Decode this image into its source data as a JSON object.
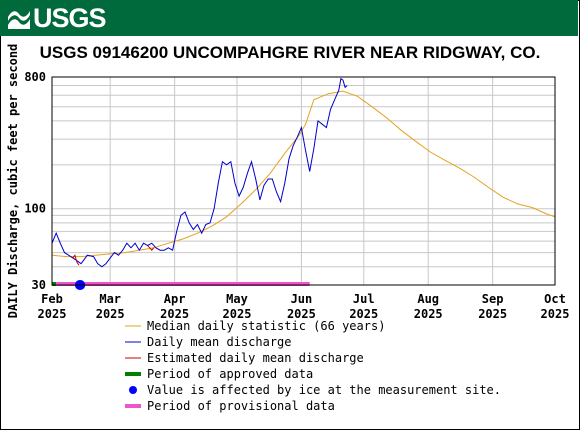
{
  "header": {
    "logo_text": "USGS",
    "logo_icon": "usgs-wave-icon",
    "banner_color": "#006a3c"
  },
  "chart_data": {
    "type": "line",
    "title": "USGS 09146200 UNCOMPAHGRE RIVER NEAR RIDGWAY, CO.",
    "ylabel": "DAILY Discharge, cubic feet per second",
    "xlabel": "",
    "yscale": "log",
    "ylim": [
      30,
      800
    ],
    "yticks": [
      30,
      100,
      800
    ],
    "xlim": [
      "2025-02-01",
      "2025-10-01"
    ],
    "xticks": [
      {
        "date": "2025-02-01",
        "month": "Feb",
        "year": "2025"
      },
      {
        "date": "2025-03-01",
        "month": "Mar",
        "year": "2025"
      },
      {
        "date": "2025-04-01",
        "month": "Apr",
        "year": "2025"
      },
      {
        "date": "2025-05-01",
        "month": "May",
        "year": "2025"
      },
      {
        "date": "2025-06-01",
        "month": "Jun",
        "year": "2025"
      },
      {
        "date": "2025-07-01",
        "month": "Jul",
        "year": "2025"
      },
      {
        "date": "2025-08-01",
        "month": "Aug",
        "year": "2025"
      },
      {
        "date": "2025-09-01",
        "month": "Sep",
        "year": "2025"
      },
      {
        "date": "2025-10-01",
        "month": "Oct",
        "year": "2025"
      }
    ],
    "grid": true,
    "legend_position": "bottom",
    "colors": {
      "median": "#e6a21f",
      "daily": "#0000cc",
      "estimated": "#cc0000",
      "approved": "#008000",
      "ice": "#0000ff",
      "provisional": "#ee55cc"
    },
    "series": [
      {
        "name": "Median daily statistic (66 years)",
        "key": "median",
        "points": [
          [
            "2025-02-01",
            48
          ],
          [
            "2025-02-08",
            47
          ],
          [
            "2025-02-15",
            47
          ],
          [
            "2025-02-22",
            48
          ],
          [
            "2025-03-01",
            49
          ],
          [
            "2025-03-08",
            50
          ],
          [
            "2025-03-15",
            52
          ],
          [
            "2025-03-22",
            54
          ],
          [
            "2025-03-29",
            58
          ],
          [
            "2025-04-05",
            62
          ],
          [
            "2025-04-12",
            68
          ],
          [
            "2025-04-19",
            76
          ],
          [
            "2025-04-26",
            88
          ],
          [
            "2025-05-03",
            108
          ],
          [
            "2025-05-10",
            135
          ],
          [
            "2025-05-17",
            175
          ],
          [
            "2025-05-24",
            240
          ],
          [
            "2025-05-31",
            320
          ],
          [
            "2025-06-03",
            380
          ],
          [
            "2025-06-07",
            560
          ],
          [
            "2025-06-14",
            615
          ],
          [
            "2025-06-21",
            640
          ],
          [
            "2025-06-28",
            590
          ],
          [
            "2025-07-05",
            500
          ],
          [
            "2025-07-12",
            420
          ],
          [
            "2025-07-19",
            345
          ],
          [
            "2025-07-26",
            290
          ],
          [
            "2025-08-02",
            245
          ],
          [
            "2025-08-09",
            215
          ],
          [
            "2025-08-16",
            190
          ],
          [
            "2025-08-23",
            165
          ],
          [
            "2025-08-30",
            140
          ],
          [
            "2025-09-06",
            120
          ],
          [
            "2025-09-13",
            108
          ],
          [
            "2025-09-20",
            102
          ],
          [
            "2025-09-27",
            92
          ],
          [
            "2025-10-01",
            88
          ]
        ]
      },
      {
        "name": "Daily mean discharge",
        "key": "daily",
        "points": [
          [
            "2025-02-01",
            58
          ],
          [
            "2025-02-03",
            68
          ],
          [
            "2025-02-05",
            58
          ],
          [
            "2025-02-07",
            50
          ],
          [
            "2025-02-09",
            48
          ],
          [
            "2025-02-11",
            46
          ],
          [
            "2025-02-13",
            44
          ],
          [
            "2025-02-15",
            42
          ],
          [
            "2025-02-18",
            48
          ],
          [
            "2025-02-21",
            47
          ],
          [
            "2025-02-23",
            42
          ],
          [
            "2025-02-25",
            40
          ],
          [
            "2025-02-27",
            42
          ],
          [
            "2025-03-01",
            46
          ],
          [
            "2025-03-03",
            50
          ],
          [
            "2025-03-05",
            48
          ],
          [
            "2025-03-07",
            52
          ],
          [
            "2025-03-09",
            58
          ],
          [
            "2025-03-11",
            54
          ],
          [
            "2025-03-13",
            58
          ],
          [
            "2025-03-15",
            52
          ],
          [
            "2025-03-17",
            58
          ],
          [
            "2025-03-19",
            56
          ],
          [
            "2025-03-21",
            58
          ],
          [
            "2025-03-23",
            54
          ],
          [
            "2025-03-25",
            52
          ],
          [
            "2025-03-27",
            52
          ],
          [
            "2025-03-29",
            54
          ],
          [
            "2025-03-31",
            52
          ],
          [
            "2025-04-02",
            70
          ],
          [
            "2025-04-04",
            90
          ],
          [
            "2025-04-06",
            95
          ],
          [
            "2025-04-08",
            80
          ],
          [
            "2025-04-10",
            72
          ],
          [
            "2025-04-12",
            78
          ],
          [
            "2025-04-14",
            68
          ],
          [
            "2025-04-16",
            78
          ],
          [
            "2025-04-18",
            80
          ],
          [
            "2025-04-20",
            100
          ],
          [
            "2025-04-22",
            150
          ],
          [
            "2025-04-24",
            210
          ],
          [
            "2025-04-26",
            200
          ],
          [
            "2025-04-28",
            210
          ],
          [
            "2025-04-30",
            150
          ],
          [
            "2025-05-02",
            122
          ],
          [
            "2025-05-04",
            140
          ],
          [
            "2025-05-06",
            175
          ],
          [
            "2025-05-08",
            210
          ],
          [
            "2025-05-10",
            160
          ],
          [
            "2025-05-12",
            115
          ],
          [
            "2025-05-14",
            145
          ],
          [
            "2025-05-16",
            160
          ],
          [
            "2025-05-18",
            160
          ],
          [
            "2025-05-20",
            130
          ],
          [
            "2025-05-22",
            112
          ],
          [
            "2025-05-24",
            150
          ],
          [
            "2025-05-26",
            220
          ],
          [
            "2025-05-28",
            270
          ],
          [
            "2025-05-30",
            310
          ],
          [
            "2025-06-01",
            360
          ],
          [
            "2025-06-03",
            250
          ],
          [
            "2025-06-05",
            180
          ],
          [
            "2025-06-07",
            260
          ],
          [
            "2025-06-09",
            400
          ],
          [
            "2025-06-11",
            380
          ],
          [
            "2025-06-13",
            360
          ],
          [
            "2025-06-15",
            480
          ],
          [
            "2025-06-17",
            560
          ],
          [
            "2025-06-19",
            650
          ],
          [
            "2025-06-20",
            780
          ],
          [
            "2025-06-21",
            760
          ],
          [
            "2025-06-22",
            680
          ],
          [
            "2025-06-23",
            700
          ]
        ]
      },
      {
        "name": "Estimated daily mean discharge",
        "key": "estimated",
        "points": [
          [
            "2025-02-11",
            46
          ],
          [
            "2025-02-12",
            48
          ],
          [
            "2025-02-13",
            43
          ],
          [
            "2025-02-14",
            41
          ],
          [
            "2025-03-19",
            56
          ],
          [
            "2025-03-20",
            54
          ],
          [
            "2025-03-21",
            52
          ],
          [
            "2025-03-22",
            54
          ]
        ]
      }
    ],
    "bars": [
      {
        "name": "Period of approved data",
        "key": "approved",
        "start": "2025-02-01",
        "end": "2025-02-03"
      },
      {
        "name": "Period of provisional data",
        "key": "provisional",
        "start": "2025-02-03",
        "end": "2025-06-05"
      }
    ],
    "markers": [
      {
        "name": "Value is affected by ice at the measurement site.",
        "key": "ice",
        "start": "2025-02-12",
        "end": "2025-02-17"
      }
    ],
    "legend": [
      {
        "label": "Median daily statistic (66 years)",
        "key": "median",
        "style": "line"
      },
      {
        "label": "Daily mean discharge",
        "key": "daily",
        "style": "line"
      },
      {
        "label": "Estimated daily mean discharge",
        "key": "estimated",
        "style": "line"
      },
      {
        "label": "Period of approved data",
        "key": "approved",
        "style": "bar"
      },
      {
        "label": "Value is affected by ice at the measurement site.",
        "key": "ice",
        "style": "dot"
      },
      {
        "label": "Period of provisional data",
        "key": "provisional",
        "style": "bar"
      }
    ]
  }
}
